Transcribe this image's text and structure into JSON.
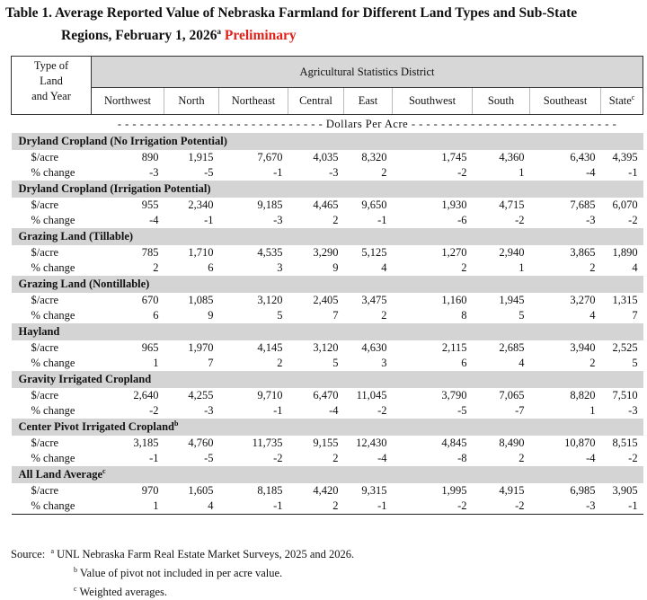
{
  "title": {
    "line1": "Table 1.  Average Reported Value of Nebraska Farmland for Different Land Types and Sub-State",
    "line2": "Regions, February 1, 2026",
    "line2_sup": "a",
    "preliminary": "Preliminary"
  },
  "header": {
    "type_label_1": "Type of",
    "type_label_2": "Land",
    "type_label_3": "and Year",
    "district": "Agricultural Statistics District",
    "columns": [
      "Northwest",
      "North",
      "Northeast",
      "Central",
      "East",
      "Southwest",
      "South",
      "Southeast",
      "State"
    ],
    "state_sup": "c",
    "dollars": "- - - - - - - - - - - - - - - - - - - - - - - - - - - - Dollars Per Acre - - - - - - - - - - - - - - - - - - - - - - - - - - - -"
  },
  "row_labels": {
    "acre": "$/acre",
    "change": "% change"
  },
  "categories": [
    {
      "name": "Dryland Cropland (No Irrigation Potential)",
      "sup": "",
      "acre": [
        "890",
        "1,915",
        "7,670",
        "4,035",
        "8,320",
        "1,745",
        "4,360",
        "6,430",
        "4,395"
      ],
      "change": [
        "-3",
        "-5",
        "-1",
        "-3",
        "2",
        "-2",
        "1",
        "-4",
        "-1"
      ]
    },
    {
      "name": "Dryland Cropland (Irrigation Potential)",
      "sup": "",
      "acre": [
        "955",
        "2,340",
        "9,185",
        "4,465",
        "9,650",
        "1,930",
        "4,715",
        "7,685",
        "6,070"
      ],
      "change": [
        "-4",
        "-1",
        "-3",
        "2",
        "-1",
        "-6",
        "-2",
        "-3",
        "-2"
      ]
    },
    {
      "name": "Grazing Land (Tillable)",
      "sup": "",
      "acre": [
        "785",
        "1,710",
        "4,535",
        "3,290",
        "5,125",
        "1,270",
        "2,940",
        "3,865",
        "1,890"
      ],
      "change": [
        "2",
        "6",
        "3",
        "9",
        "4",
        "2",
        "1",
        "2",
        "4"
      ]
    },
    {
      "name": "Grazing Land (Nontillable)",
      "sup": "",
      "acre": [
        "670",
        "1,085",
        "3,120",
        "2,405",
        "3,475",
        "1,160",
        "1,945",
        "3,270",
        "1,315"
      ],
      "change": [
        "6",
        "9",
        "5",
        "7",
        "2",
        "8",
        "5",
        "4",
        "7"
      ]
    },
    {
      "name": "Hayland",
      "sup": "",
      "acre": [
        "965",
        "1,970",
        "4,145",
        "3,120",
        "4,630",
        "2,115",
        "2,685",
        "3,940",
        "2,525"
      ],
      "change": [
        "1",
        "7",
        "2",
        "5",
        "3",
        "6",
        "4",
        "2",
        "5"
      ]
    },
    {
      "name": "Gravity Irrigated Cropland",
      "sup": "",
      "acre": [
        "2,640",
        "4,255",
        "9,710",
        "6,470",
        "11,045",
        "3,790",
        "7,065",
        "8,820",
        "7,510"
      ],
      "change": [
        "-2",
        "-3",
        "-1",
        "-4",
        "-2",
        "-5",
        "-7",
        "1",
        "-3"
      ]
    },
    {
      "name": "Center Pivot Irrigated Cropland",
      "sup": "b",
      "acre": [
        "3,185",
        "4,760",
        "11,735",
        "9,155",
        "12,430",
        "4,845",
        "8,490",
        "10,870",
        "8,515"
      ],
      "change": [
        "-1",
        "-5",
        "-2",
        "2",
        "-4",
        "-8",
        "2",
        "-4",
        "-2"
      ]
    },
    {
      "name": "All Land Average",
      "sup": "c",
      "acre": [
        "970",
        "1,605",
        "8,185",
        "4,420",
        "9,315",
        "1,995",
        "4,915",
        "6,985",
        "3,905"
      ],
      "change": [
        "1",
        "4",
        "-1",
        "2",
        "-1",
        "-2",
        "-2",
        "-3",
        "-1"
      ]
    }
  ],
  "source": {
    "label": "Source:",
    "notes": [
      {
        "sup": "a",
        "text": "UNL Nebraska Farm Real Estate Market Surveys, 2025 and 2026."
      },
      {
        "sup": "b",
        "text": "Value of pivot not included in per acre value."
      },
      {
        "sup": "c",
        "text": "Weighted averages."
      }
    ]
  }
}
